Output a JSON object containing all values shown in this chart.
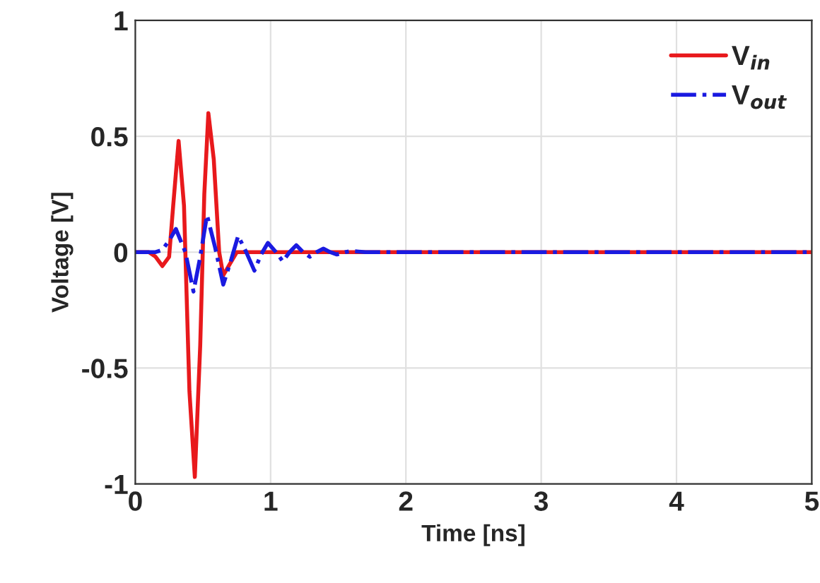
{
  "chart_data": {
    "type": "line",
    "xlabel": "Time [ns]",
    "ylabel": "Voltage [V]",
    "xlim": [
      0,
      5
    ],
    "ylim": [
      -1,
      1
    ],
    "xticks": [
      0,
      1,
      2,
      3,
      4,
      5
    ],
    "yticks": [
      -1,
      -0.5,
      0,
      0.5,
      1
    ],
    "grid": true,
    "legend": "top right",
    "marker": "none",
    "series": [
      {
        "name": "V$_{in}$",
        "color": "#e8191c",
        "line_style": "solid",
        "x": [
          0,
          0.1,
          0.15,
          0.2,
          0.25,
          0.28,
          0.32,
          0.36,
          0.4,
          0.44,
          0.48,
          0.51,
          0.54,
          0.58,
          0.62,
          0.65,
          0.69,
          0.75,
          0.85,
          1.0,
          2.0,
          3.0,
          4.0,
          5.0
        ],
        "values": [
          0,
          0,
          -0.02,
          -0.06,
          -0.02,
          0.2,
          0.48,
          0.2,
          -0.6,
          -0.97,
          -0.4,
          0.25,
          0.6,
          0.4,
          0.0,
          -0.1,
          -0.06,
          0,
          0,
          0,
          0,
          0,
          0,
          0
        ]
      },
      {
        "name": "V$_{out}$",
        "color": "#1a1ae0",
        "line_style": "dashed",
        "x": [
          0,
          0.15,
          0.2,
          0.25,
          0.3,
          0.37,
          0.43,
          0.48,
          0.53,
          0.59,
          0.65,
          0.71,
          0.76,
          0.82,
          0.88,
          0.93,
          0.98,
          1.04,
          1.09,
          1.14,
          1.19,
          1.24,
          1.29,
          1.34,
          1.39,
          1.44,
          1.49,
          1.55,
          1.6,
          1.7,
          2.0,
          3.0,
          4.0,
          5.0
        ],
        "values": [
          0,
          0,
          0.01,
          0.05,
          0.1,
          0.0,
          -0.17,
          -0.02,
          0.16,
          0.02,
          -0.14,
          -0.03,
          0.07,
          0.0,
          -0.08,
          -0.01,
          0.04,
          0.0,
          -0.04,
          0.0,
          0.03,
          0.0,
          -0.02,
          0.0,
          0.015,
          0.0,
          -0.01,
          0.0,
          0.005,
          0,
          0,
          0,
          0,
          0
        ]
      }
    ]
  }
}
